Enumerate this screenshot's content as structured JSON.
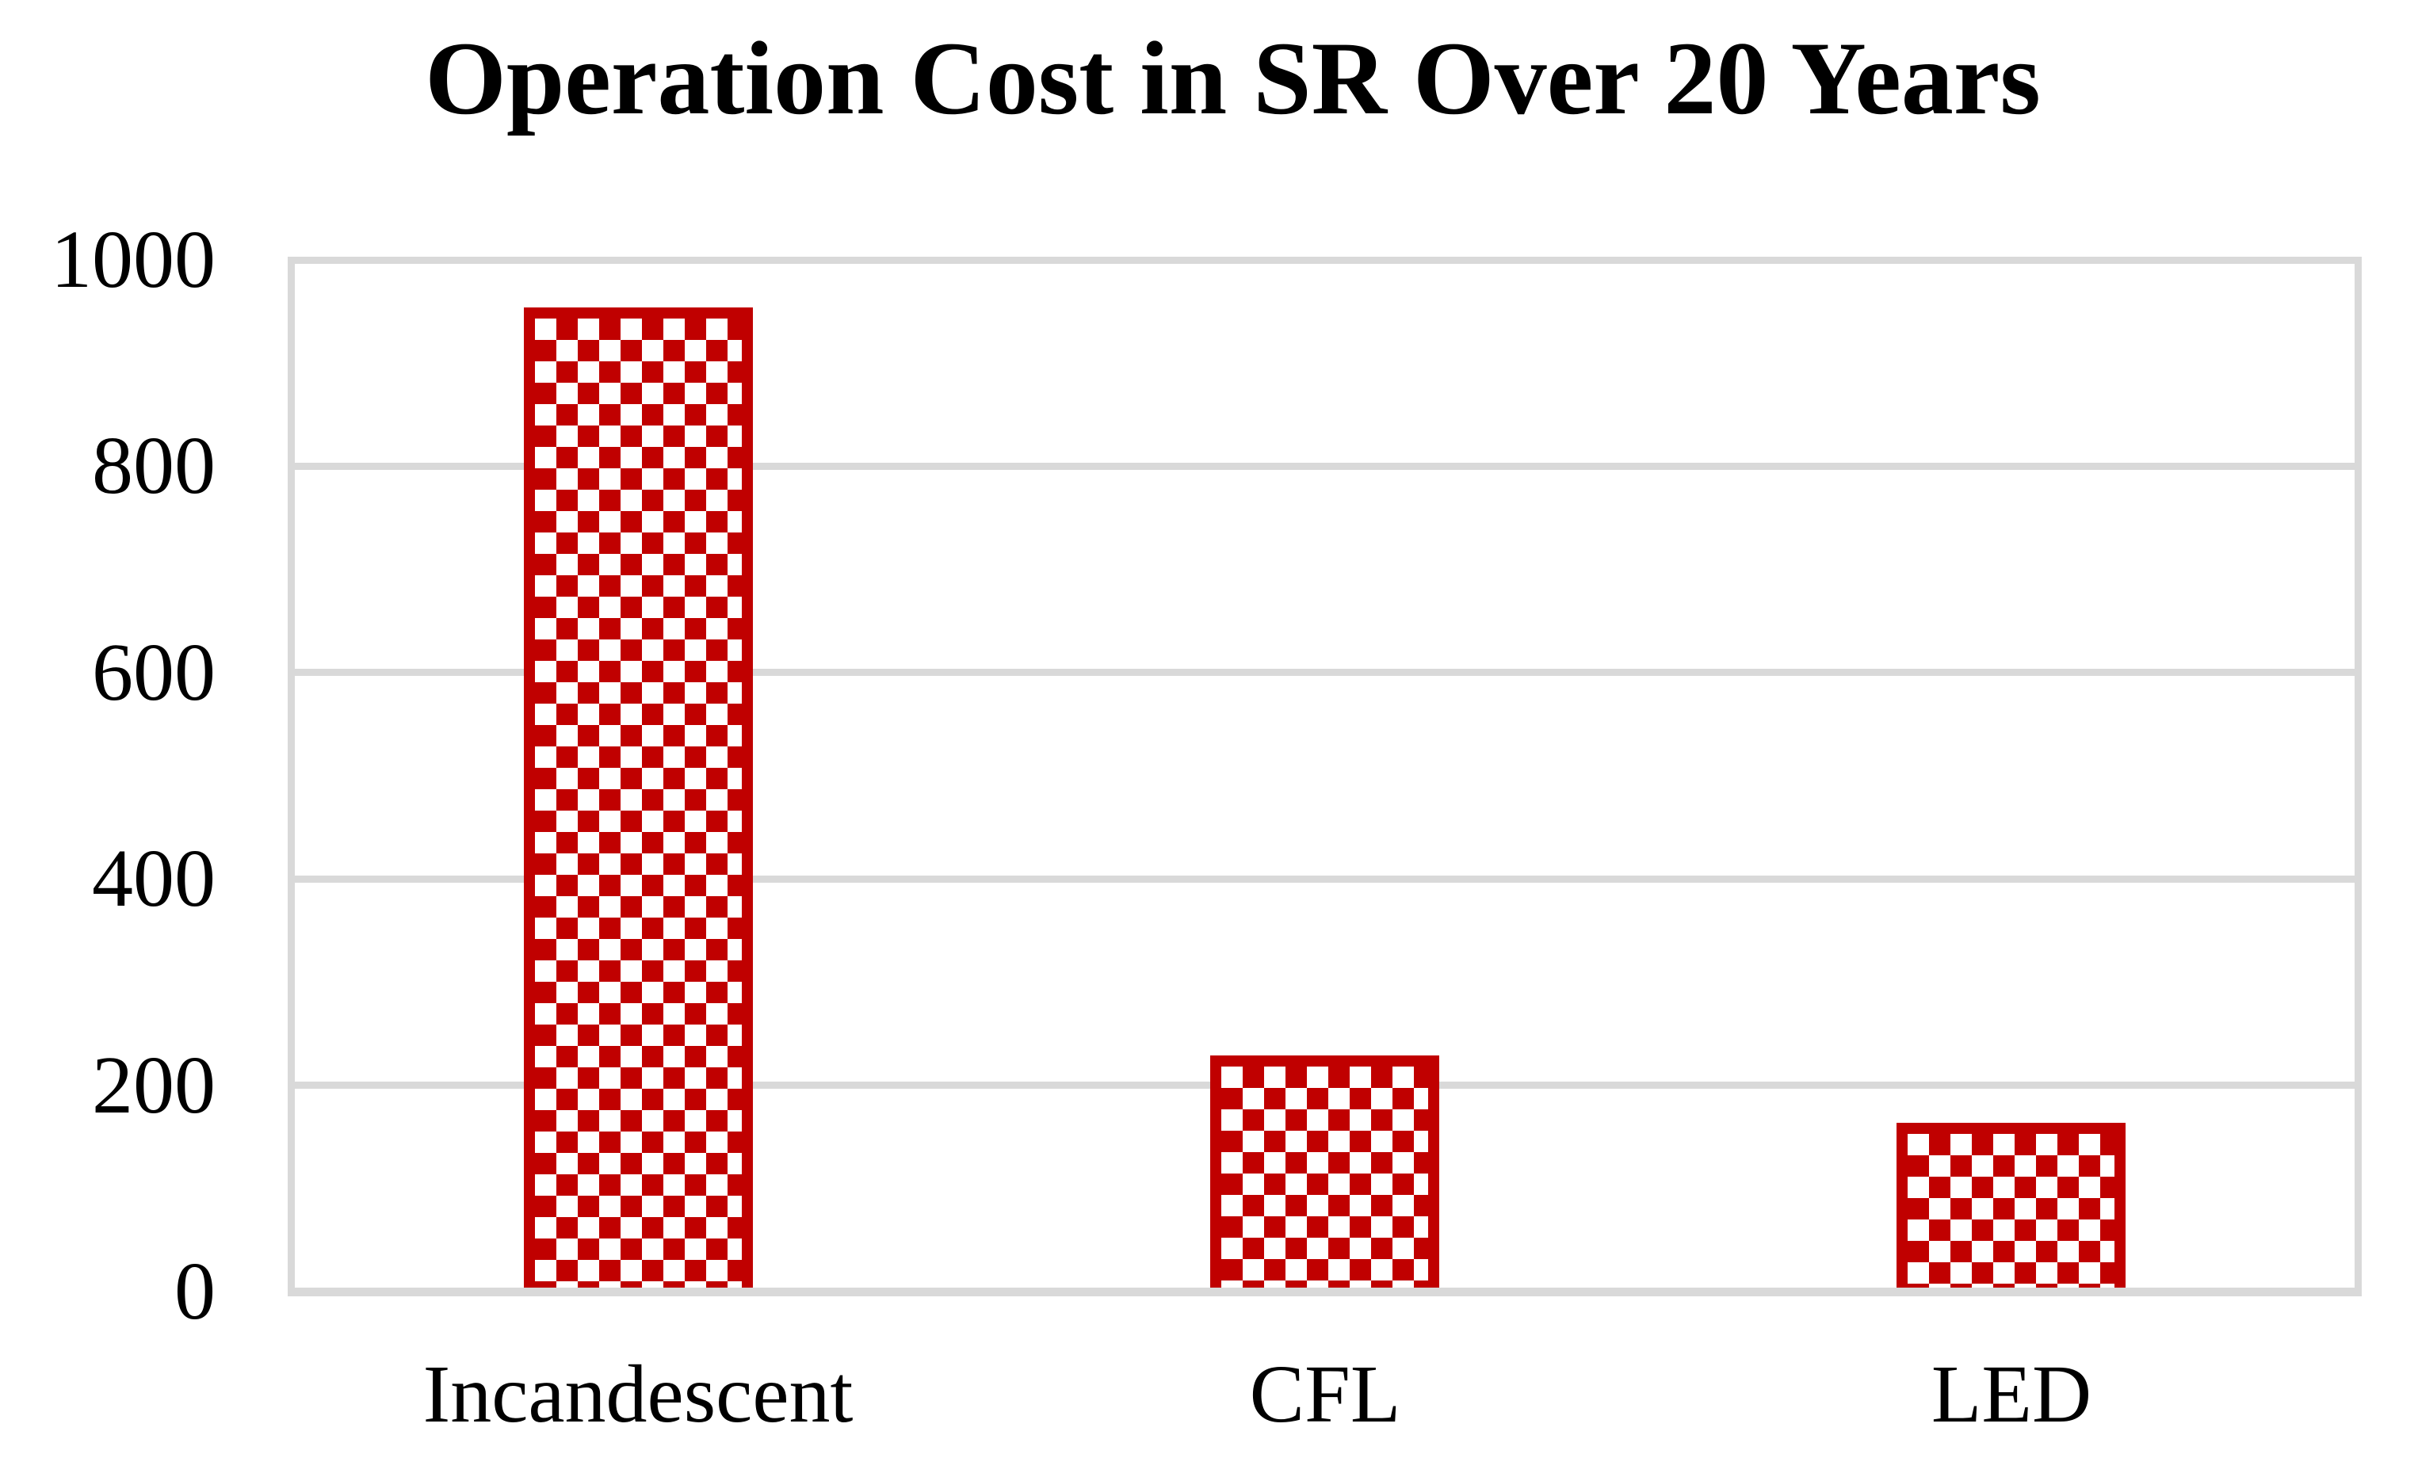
{
  "chart_data": {
    "type": "bar",
    "title": "Operation Cost in SR Over 20 Years",
    "categories": [
      "Incandescent",
      "CFL",
      "LED"
    ],
    "values": [
      950,
      225,
      160
    ],
    "xlabel": "",
    "ylabel": "",
    "ylim": [
      0,
      1000
    ],
    "yticks": [
      0,
      200,
      400,
      600,
      800,
      1000
    ],
    "grid": true,
    "legend": false,
    "bar_fill_pattern": "checkerboard",
    "bar_color": "#C00000",
    "bar_pattern_bg": "#FFFFFF",
    "gridline_color": "#D9D9D9",
    "axis_line_color": "#D9D9D9",
    "text_color": "#000000",
    "background_color": "#FFFFFF"
  }
}
